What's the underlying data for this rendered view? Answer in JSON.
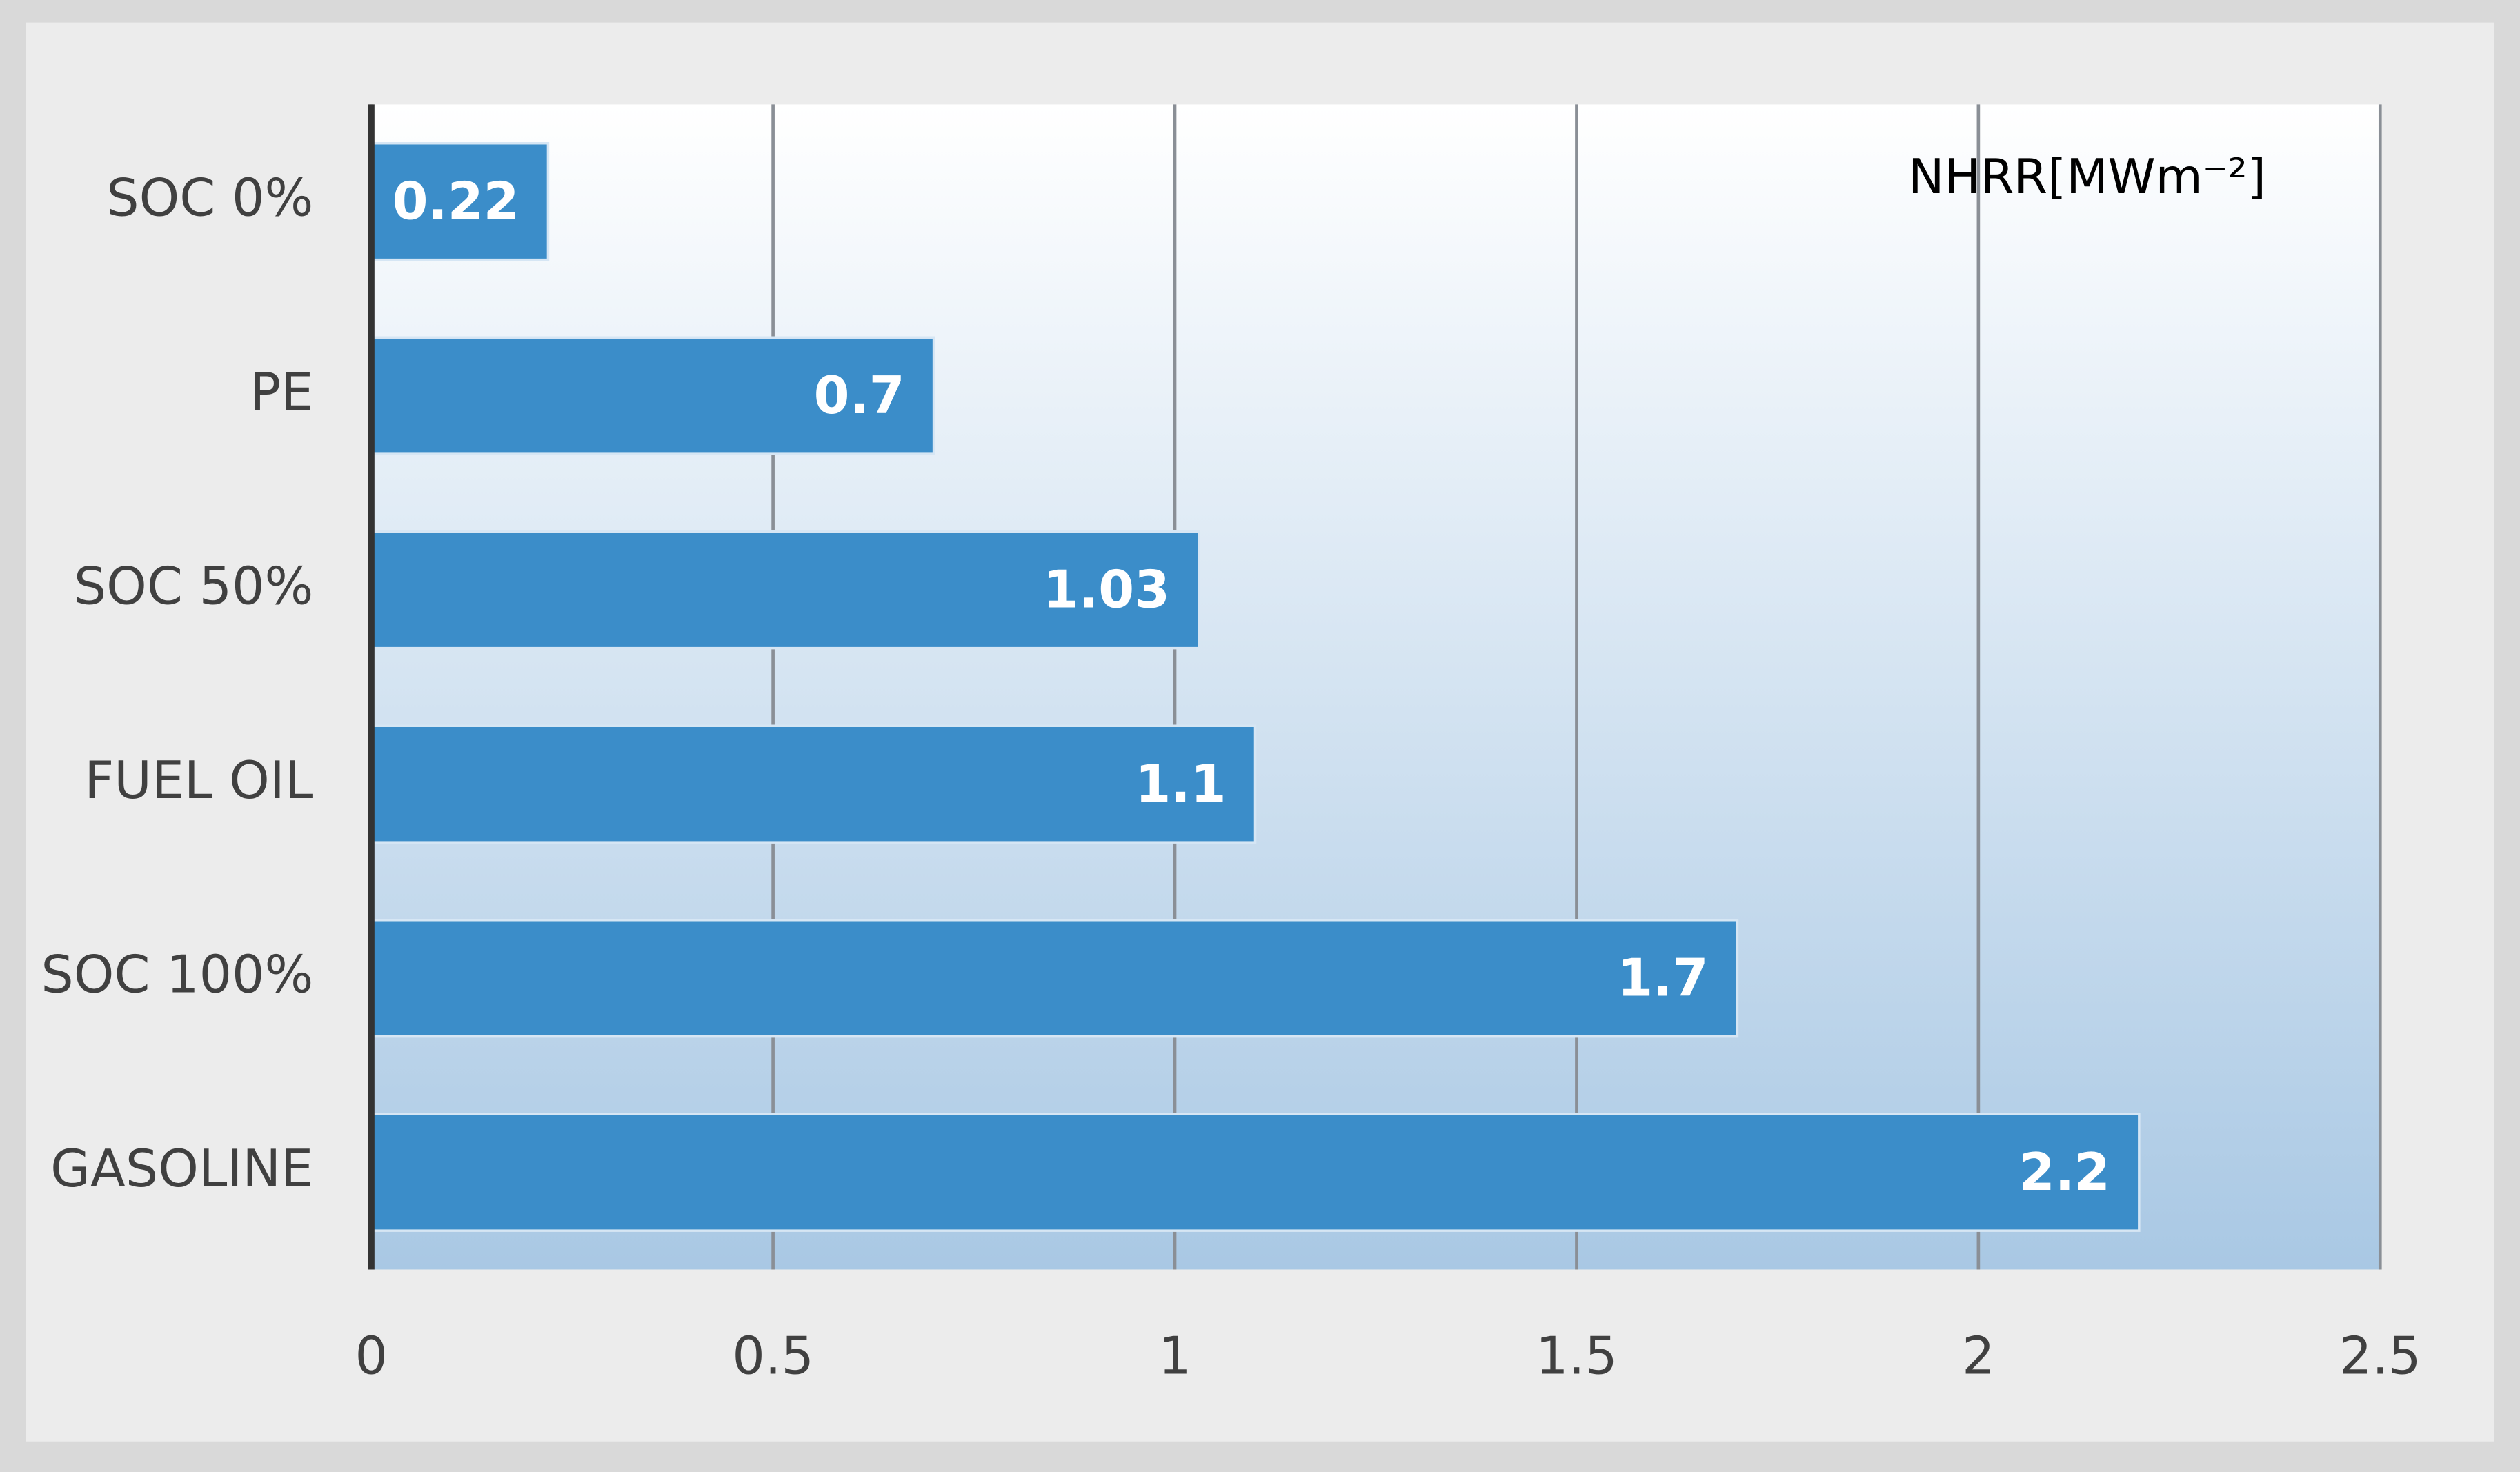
{
  "chart_data": {
    "type": "bar",
    "orientation": "horizontal",
    "categories": [
      "SOC 0%",
      "PE",
      "SOC 50%",
      "FUEL OIL",
      "SOC 100%",
      "GASOLINE"
    ],
    "series": [
      {
        "name": "NHRR[MWm⁻²]",
        "color": "#3b8dc9",
        "values": [
          0.22,
          0.7,
          1.03,
          1.1,
          1.7,
          2.2
        ]
      }
    ],
    "xlim": [
      0,
      2.5
    ],
    "xticks": [
      0,
      0.5,
      1,
      1.5,
      2,
      2.5
    ],
    "grid": true,
    "legend": "top-right"
  }
}
